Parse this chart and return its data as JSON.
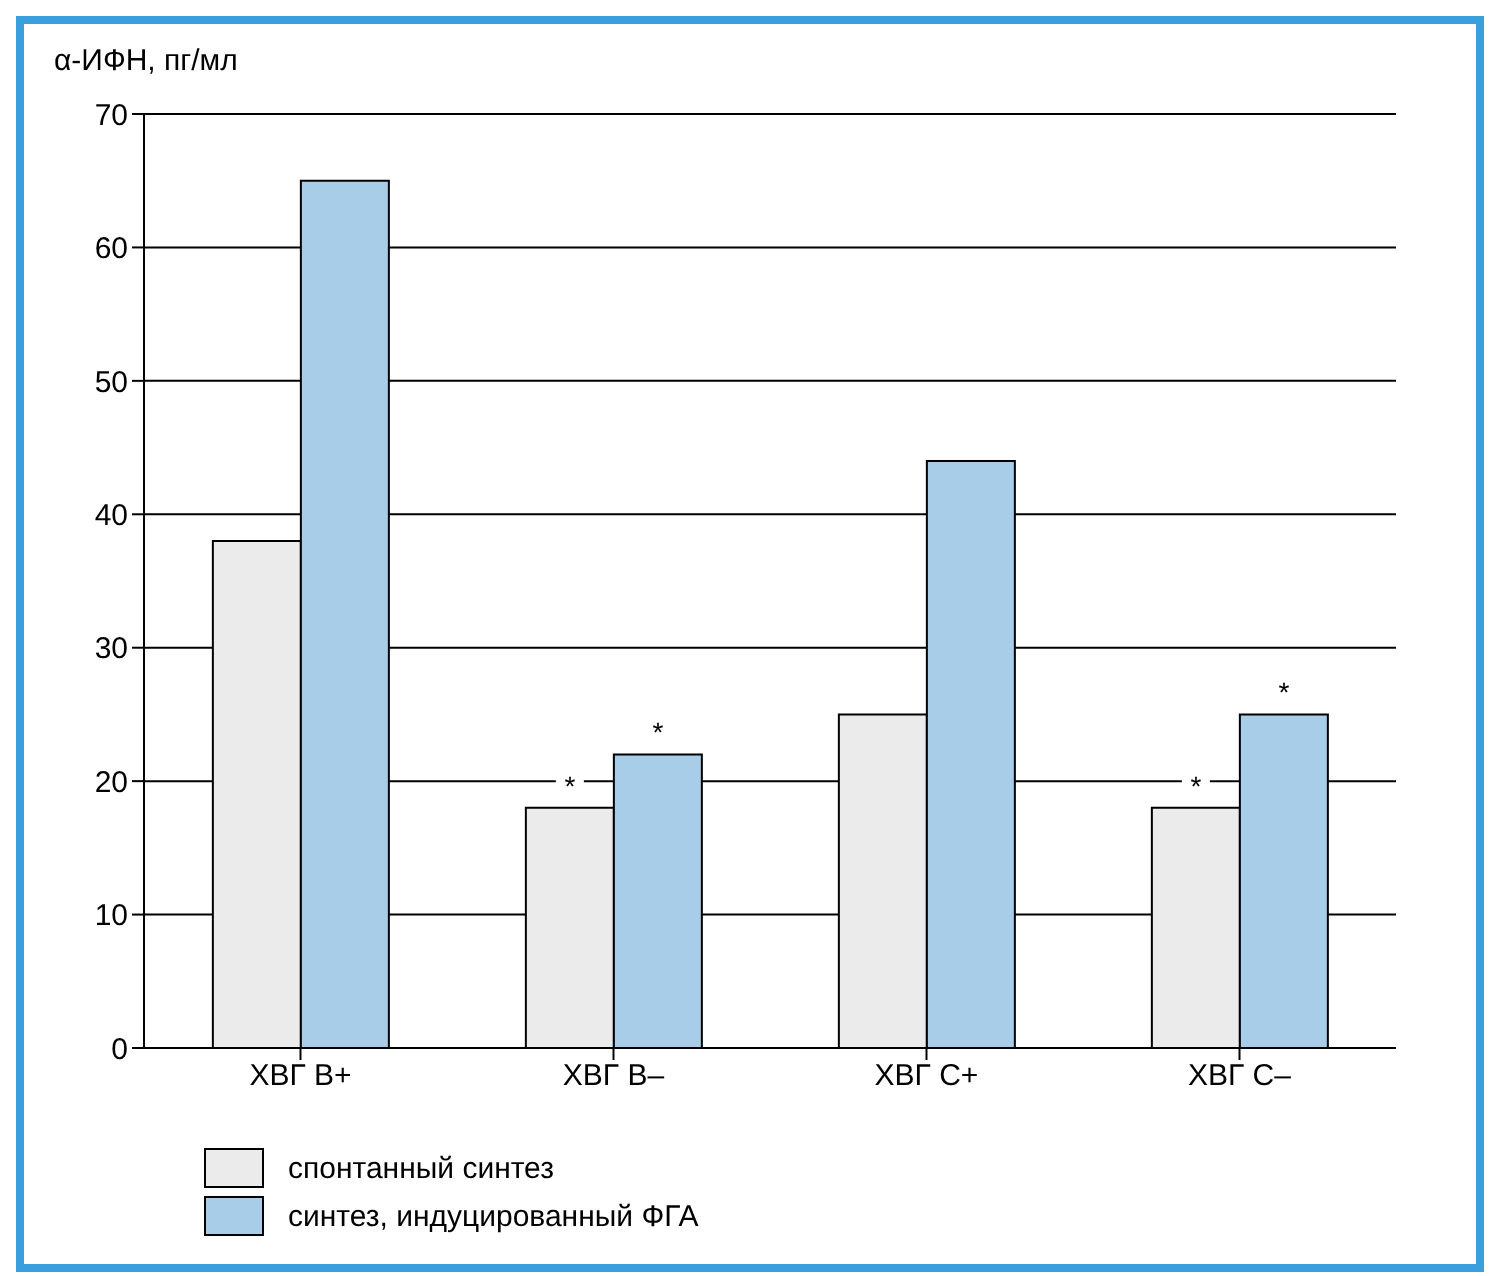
{
  "chart_data": {
    "type": "bar",
    "ylabel": "α-ИФН, пг/мл",
    "categories": [
      "ХВГ В+",
      "ХВГ В–",
      "ХВГ С+",
      "ХВГ С–"
    ],
    "series": [
      {
        "name": "спонтанный синтез",
        "color": "#ebebeb",
        "values": [
          38,
          18,
          25,
          18
        ],
        "value_labels": [
          null,
          "*",
          null,
          "*"
        ]
      },
      {
        "name": "синтез, индуцированный ФГА",
        "color": "#a8cde8",
        "values": [
          65,
          22,
          44,
          25
        ],
        "value_labels": [
          null,
          "*",
          null,
          "*"
        ]
      }
    ],
    "ylim": [
      0,
      70
    ],
    "yticks": [
      0,
      10,
      20,
      30,
      40,
      50,
      60,
      70
    ],
    "grid": "y",
    "legend": "bottom left"
  }
}
